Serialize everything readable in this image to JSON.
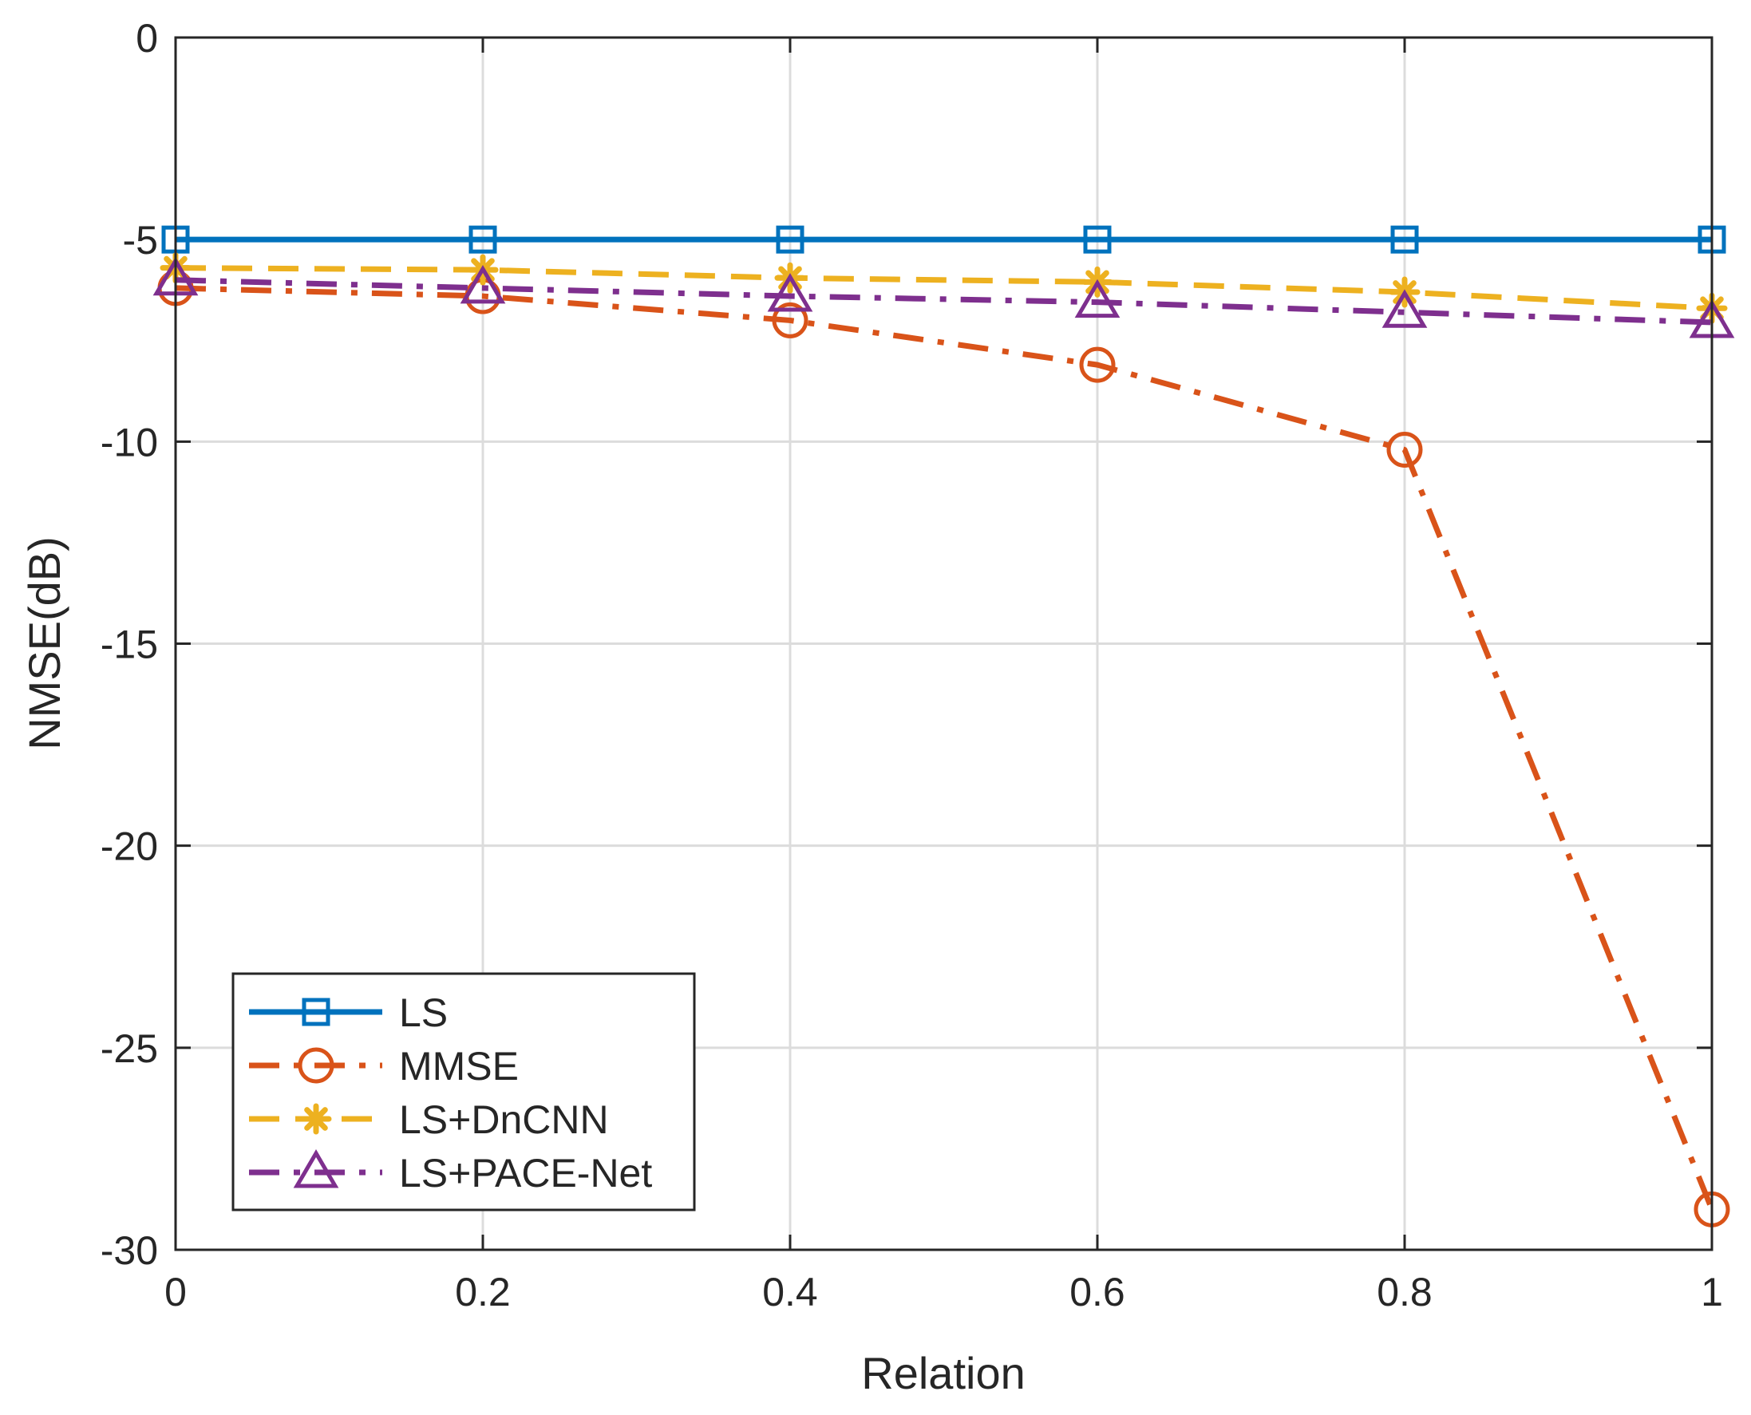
{
  "chart_data": {
    "type": "line",
    "title": "",
    "xlabel": "Relation",
    "ylabel": "NMSE(dB)",
    "xlim": [
      0,
      1
    ],
    "ylim": [
      -30,
      0
    ],
    "grid": true,
    "legend_position": "bottom-left",
    "x": [
      0,
      0.2,
      0.4,
      0.6,
      0.8,
      1
    ],
    "x_ticks": [
      0,
      0.2,
      0.4,
      0.6,
      0.8,
      1
    ],
    "x_tick_labels": [
      "0",
      "0.2",
      "0.4",
      "0.6",
      "0.8",
      "1"
    ],
    "y_ticks": [
      0,
      -5,
      -10,
      -15,
      -20,
      -25,
      -30
    ],
    "y_tick_labels": [
      "0",
      "-5",
      "-10",
      "-15",
      "-20",
      "-25",
      "-30"
    ],
    "series": [
      {
        "name": "LS",
        "values": [
          -5.0,
          -5.0,
          -5.0,
          -5.0,
          -5.0,
          -5.0
        ],
        "color": "#0072BD",
        "line_style": "solid",
        "marker": "square"
      },
      {
        "name": "MMSE",
        "values": [
          -6.2,
          -6.4,
          -7.0,
          -8.1,
          -10.2,
          -29.0
        ],
        "color": "#D95319",
        "line_style": "dashdot",
        "marker": "circle"
      },
      {
        "name": "LS+DnCNN",
        "values": [
          -5.7,
          -5.75,
          -5.95,
          -6.05,
          -6.3,
          -6.7
        ],
        "color": "#EDB120",
        "line_style": "dashed",
        "marker": "asterisk"
      },
      {
        "name": "LS+PACE-Net",
        "values": [
          -6.0,
          -6.2,
          -6.4,
          -6.55,
          -6.8,
          -7.05
        ],
        "color": "#7E2F8E",
        "line_style": "dashdot",
        "marker": "triangle"
      }
    ]
  }
}
